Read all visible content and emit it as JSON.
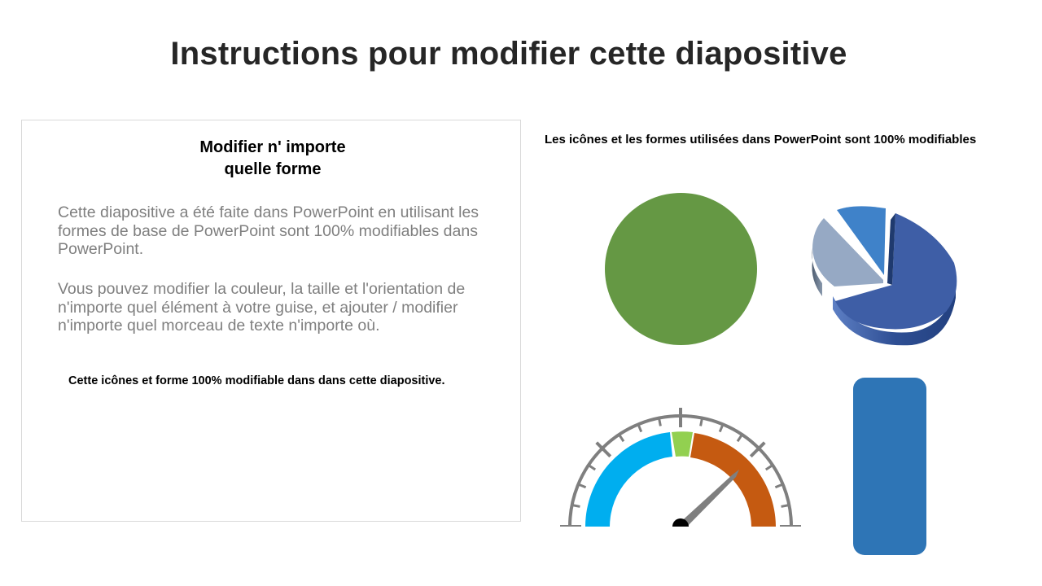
{
  "slide": {
    "title": "Instructions pour modifier cette diapositive"
  },
  "panel": {
    "heading_line1": "Modifier n' importe",
    "heading_line2": "quelle forme",
    "paragraph1": "Cette diapositive a été faite dans PowerPoint en utilisant les formes de base de PowerPoint sont 100% modifiables dans PowerPoint.",
    "paragraph2": "Vous pouvez modifier la couleur, la taille et l'orientation de n'importe quel élément à votre guise, et ajouter / modifier n'importe quel morceau de texte n'importe où.",
    "note": "Cette icônes et forme 100% modifiable dans dans cette diapositive."
  },
  "shapes": {
    "caption": "Les icônes et les formes utilisées dans PowerPoint sont 100% modifiables",
    "colors": {
      "circle": "#659844",
      "pie_large": "#3e5ea6",
      "pie_grey": "#96a9c4",
      "pie_light": "#3f82c9",
      "gauge_blue": "#00aeef",
      "gauge_green": "#92d050",
      "gauge_orange": "#c55a11",
      "gauge_ticks": "#7f7f7f",
      "needle": "#7f7f7f",
      "bar": "#2e75b6"
    }
  }
}
